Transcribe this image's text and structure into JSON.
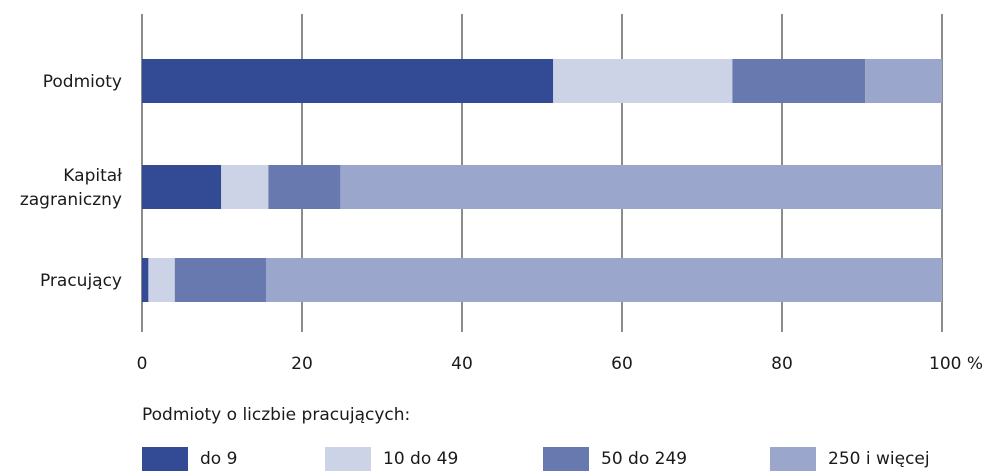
{
  "chart_data": {
    "type": "bar",
    "orientation": "horizontal",
    "stacked": true,
    "categories": [
      [
        "Podmioty"
      ],
      [
        "Kapitał",
        "zagraniczny"
      ],
      [
        "Pracujący"
      ]
    ],
    "series": [
      {
        "name": "do 9",
        "values": [
          51.4,
          9.9,
          0.8
        ],
        "color": "#334a94"
      },
      {
        "name": "10 do 49",
        "values": [
          22.4,
          5.9,
          3.3
        ],
        "color": "#cdd3e6"
      },
      {
        "name": "50 do 249",
        "values": [
          16.6,
          9.0,
          11.4
        ],
        "color": "#6879b0"
      },
      {
        "name": "250 i więcej",
        "values": [
          9.6,
          75.2,
          84.5
        ],
        "color": "#9aa6cb"
      }
    ],
    "xlim": [
      0,
      100
    ],
    "xticks": [
      "0",
      "20",
      "40",
      "60",
      "80",
      "100 %"
    ],
    "grid": true
  },
  "legend": {
    "title": "Podmioty o liczbie pracujących:",
    "placement": "bottom"
  }
}
